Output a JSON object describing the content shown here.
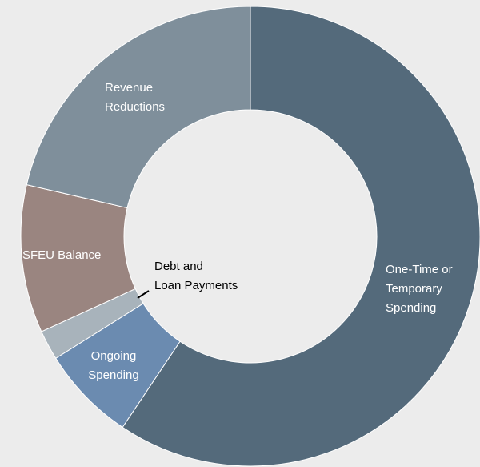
{
  "chart_data": {
    "type": "donut",
    "categories": [
      [
        "One-Time or",
        "Temporary",
        "Spending"
      ],
      [
        "Ongoing",
        "Spending"
      ],
      [
        "Debt and",
        "Loan Payments"
      ],
      [
        "SFEU Balance"
      ],
      [
        "Revenue",
        "Reductions"
      ]
    ],
    "values": [
      59.4,
      6.7,
      2.1,
      10.4,
      21.4
    ],
    "colors": [
      "#546a7b",
      "#6b8bb0",
      "#a8b3bb",
      "#9a8580",
      "#7f8f9b"
    ]
  }
}
